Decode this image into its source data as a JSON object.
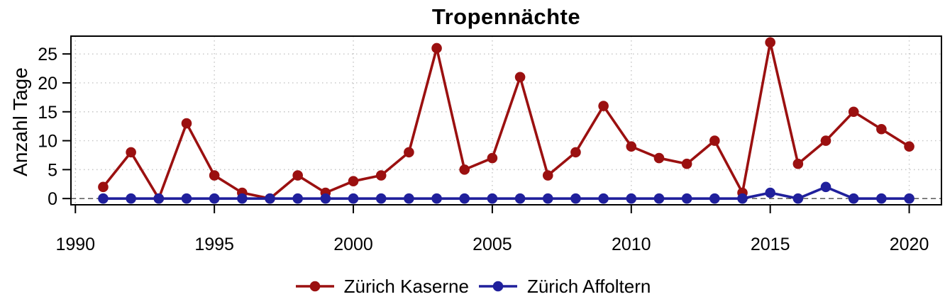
{
  "chart_data": {
    "type": "line",
    "title": "Tropennächte",
    "xlabel": "",
    "ylabel": "Anzahl Tage",
    "x": [
      1991,
      1992,
      1993,
      1994,
      1995,
      1996,
      1997,
      1998,
      1999,
      2000,
      2001,
      2002,
      2003,
      2004,
      2005,
      2006,
      2007,
      2008,
      2009,
      2010,
      2011,
      2012,
      2013,
      2014,
      2015,
      2016,
      2017,
      2018,
      2019,
      2020
    ],
    "series": [
      {
        "name": "Zürich Kaserne",
        "color": "#9b1010",
        "marker": "circle",
        "values": [
          2,
          8,
          0,
          13,
          4,
          1,
          0,
          4,
          1,
          3,
          4,
          8,
          26,
          5,
          7,
          21,
          4,
          8,
          16,
          9,
          7,
          6,
          10,
          1,
          27,
          6,
          10,
          15,
          12,
          9
        ]
      },
      {
        "name": "Zürich Affoltern",
        "color": "#20209c",
        "marker": "circle",
        "values": [
          0,
          0,
          0,
          0,
          0,
          0,
          0,
          0,
          0,
          0,
          0,
          0,
          0,
          0,
          0,
          0,
          0,
          0,
          0,
          0,
          0,
          0,
          0,
          0,
          1,
          0,
          2,
          0,
          0,
          0
        ]
      }
    ],
    "x_ticks": [
      1990,
      1995,
      2000,
      2005,
      2010,
      2015,
      2020
    ],
    "y_ticks": [
      0,
      5,
      10,
      15,
      20,
      25
    ],
    "xlim": [
      1989.84,
      2021.16
    ],
    "ylim": [
      -1.08,
      28.08
    ],
    "grid": "dotted",
    "zero_line": "dashed",
    "legend_position": "bottom-center",
    "axis_color": "#000000",
    "grid_color": "#c4c4c4",
    "background": "#ffffff"
  }
}
